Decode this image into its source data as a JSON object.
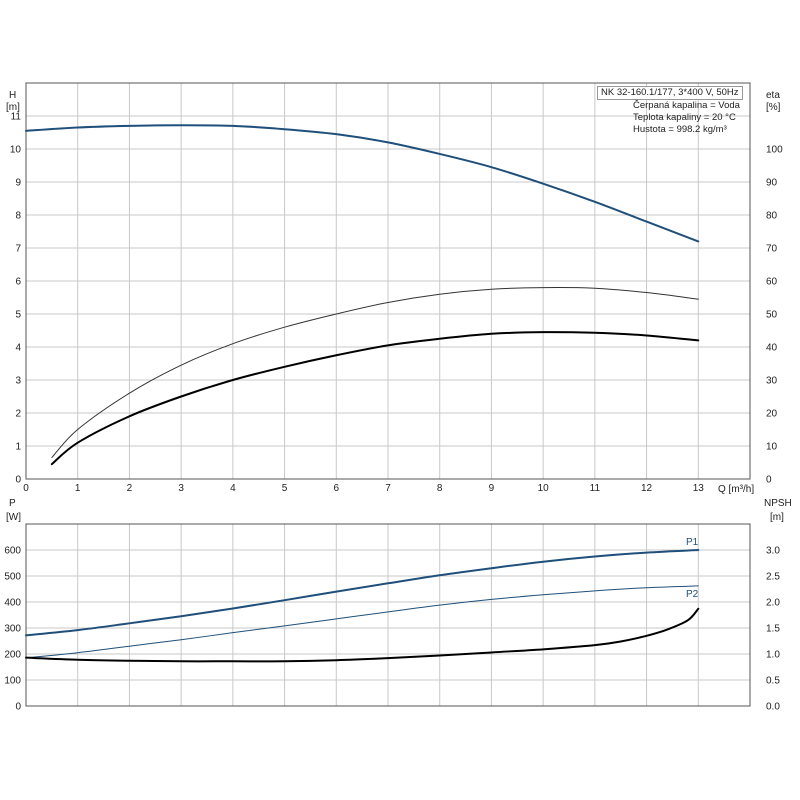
{
  "info": {
    "title": "NK 32-160.1/177, 3*400 V, 50Hz",
    "liquid": "Čerpaná kapalina = Voda",
    "temperature": "Teplota kapaliny = 20 °C",
    "density": "Hustota = 998.2 kg/m³"
  },
  "chart_data": [
    {
      "type": "line",
      "panel": "upper",
      "left_axis": {
        "label_line1": "H",
        "label_line2": "[m]",
        "range": [
          0,
          12
        ],
        "ticks": [
          "0",
          "1",
          "2",
          "3",
          "4",
          "5",
          "6",
          "7",
          "8",
          "9",
          "10",
          "11"
        ]
      },
      "right_axis": {
        "label_line1": "eta",
        "label_line2": "[%]",
        "range": [
          0,
          120
        ],
        "ticks": [
          "0",
          "10",
          "20",
          "30",
          "40",
          "50",
          "60",
          "70",
          "80",
          "90",
          "100"
        ]
      },
      "x_axis": {
        "label": "Q [m³/h]",
        "range": [
          0,
          14
        ],
        "ticks": [
          "0",
          "1",
          "2",
          "3",
          "4",
          "5",
          "6",
          "7",
          "8",
          "9",
          "10",
          "11",
          "12",
          "13"
        ]
      },
      "grid": true,
      "series": [
        {
          "axis": "left",
          "color": "#1f4f7a",
          "width": 2,
          "x": [
            0,
            1,
            2,
            3,
            4,
            5,
            6,
            7,
            8,
            9,
            10,
            11,
            12,
            13
          ],
          "y": [
            10.55,
            10.65,
            10.7,
            10.72,
            10.7,
            10.6,
            10.45,
            10.2,
            9.85,
            9.45,
            8.95,
            8.4,
            7.8,
            7.2
          ]
        },
        {
          "axis": "right",
          "color": "#333333",
          "width": 1,
          "x": [
            0.5,
            1,
            2,
            3,
            4,
            5,
            6,
            7,
            8,
            9,
            10,
            11,
            12,
            13
          ],
          "y": [
            6.5,
            15,
            26,
            34.5,
            41,
            46,
            50,
            53.5,
            56,
            57.5,
            58,
            57.8,
            56.5,
            54.5
          ]
        },
        {
          "axis": "right",
          "color": "#000000",
          "width": 2,
          "x": [
            0.5,
            1,
            2,
            3,
            4,
            5,
            6,
            7,
            8,
            9,
            10,
            11,
            12,
            13
          ],
          "y": [
            4.5,
            11,
            19,
            25,
            30,
            34,
            37.5,
            40.5,
            42.5,
            44,
            44.5,
            44.3,
            43.5,
            42
          ]
        }
      ]
    },
    {
      "type": "line",
      "panel": "lower",
      "left_axis": {
        "label_line1": "P",
        "label_line2": "[W]",
        "range": [
          0,
          700
        ],
        "ticks": [
          "0",
          "100",
          "200",
          "300",
          "400",
          "500",
          "600"
        ]
      },
      "right_axis": {
        "label_line1": "NPSH",
        "label_line2": "[m]",
        "range": [
          0,
          3.5
        ],
        "ticks": [
          "0.0",
          "0.5",
          "1.0",
          "1.5",
          "2.0",
          "2.5",
          "3.0"
        ]
      },
      "x_axis": {
        "range": [
          0,
          14
        ]
      },
      "grid": true,
      "series": [
        {
          "name": "P1",
          "axis": "left",
          "color": "#1f4f7a",
          "width": 2,
          "x": [
            0,
            1,
            2,
            3,
            4,
            5,
            6,
            7,
            8,
            9,
            10,
            11,
            12,
            13
          ],
          "y": [
            272,
            292,
            318,
            345,
            375,
            407,
            440,
            472,
            503,
            530,
            555,
            575,
            590,
            600
          ]
        },
        {
          "name": "P2",
          "axis": "left",
          "color": "#1f4f7a",
          "width": 1,
          "x": [
            0,
            1,
            2,
            3,
            4,
            5,
            6,
            7,
            8,
            9,
            10,
            11,
            12,
            13
          ],
          "y": [
            185,
            205,
            230,
            255,
            282,
            308,
            335,
            362,
            388,
            410,
            428,
            443,
            455,
            462
          ]
        },
        {
          "axis": "right",
          "color": "#000000",
          "width": 2,
          "x": [
            0,
            1,
            2,
            3,
            4,
            5,
            6,
            7,
            8,
            9,
            10,
            11,
            11.5,
            12,
            12.4,
            12.8,
            13
          ],
          "y": [
            0.93,
            0.89,
            0.87,
            0.86,
            0.86,
            0.86,
            0.88,
            0.92,
            0.97,
            1.03,
            1.09,
            1.17,
            1.24,
            1.35,
            1.47,
            1.65,
            1.87
          ]
        }
      ]
    }
  ]
}
